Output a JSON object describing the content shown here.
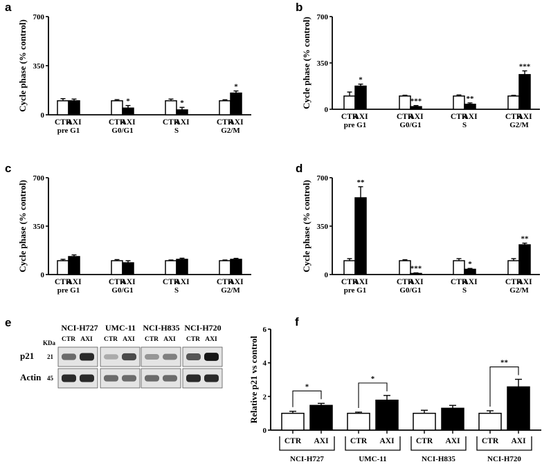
{
  "chart_data": [
    {
      "panel": "a",
      "type": "bar",
      "ylabel": "Cycle phase (% control)",
      "ylim": [
        0,
        700
      ],
      "yticks": [
        0,
        350,
        700
      ],
      "groups": [
        {
          "phase": "pre G1",
          "bars": [
            {
              "label": "CTR",
              "value": 100,
              "err": 15,
              "sig": ""
            },
            {
              "label": "AXI",
              "value": 100,
              "err": 12,
              "sig": ""
            }
          ]
        },
        {
          "phase": "G0/G1",
          "bars": [
            {
              "label": "CTR",
              "value": 100,
              "err": 8,
              "sig": ""
            },
            {
              "label": "AXI",
              "value": 48,
              "err": 18,
              "sig": "*"
            }
          ]
        },
        {
          "phase": "S",
          "bars": [
            {
              "label": "CTR",
              "value": 100,
              "err": 12,
              "sig": ""
            },
            {
              "label": "AXI",
              "value": 35,
              "err": 18,
              "sig": "*"
            }
          ]
        },
        {
          "phase": "G2/M",
          "bars": [
            {
              "label": "CTR",
              "value": 100,
              "err": 7,
              "sig": ""
            },
            {
              "label": "AXI",
              "value": 155,
              "err": 15,
              "sig": "*"
            }
          ]
        }
      ]
    },
    {
      "panel": "b",
      "type": "bar",
      "ylabel": "Cycle phase (% control)",
      "ylim": [
        0,
        700
      ],
      "yticks": [
        0,
        350,
        700
      ],
      "groups": [
        {
          "phase": "pre G1",
          "bars": [
            {
              "label": "CTR",
              "value": 100,
              "err": 30,
              "sig": ""
            },
            {
              "label": "AXI",
              "value": 175,
              "err": 15,
              "sig": "*"
            }
          ]
        },
        {
          "phase": "G0/G1",
          "bars": [
            {
              "label": "CTR",
              "value": 100,
              "err": 6,
              "sig": ""
            },
            {
              "label": "AXI",
              "value": 20,
              "err": 8,
              "sig": "***"
            }
          ]
        },
        {
          "phase": "S",
          "bars": [
            {
              "label": "CTR",
              "value": 100,
              "err": 8,
              "sig": ""
            },
            {
              "label": "AXI",
              "value": 38,
              "err": 10,
              "sig": "**"
            }
          ]
        },
        {
          "phase": "G2/M",
          "bars": [
            {
              "label": "CTR",
              "value": 100,
              "err": 5,
              "sig": ""
            },
            {
              "label": "AXI",
              "value": 262,
              "err": 28,
              "sig": "***"
            }
          ]
        }
      ]
    },
    {
      "panel": "c",
      "type": "bar",
      "ylabel": "Cycle phase (% control)",
      "ylim": [
        0,
        700
      ],
      "yticks": [
        0,
        350,
        700
      ],
      "groups": [
        {
          "phase": "pre G1",
          "bars": [
            {
              "label": "CTR",
              "value": 100,
              "err": 10,
              "sig": ""
            },
            {
              "label": "AXI",
              "value": 130,
              "err": 12,
              "sig": ""
            }
          ]
        },
        {
          "phase": "G0/G1",
          "bars": [
            {
              "label": "CTR",
              "value": 100,
              "err": 8,
              "sig": ""
            },
            {
              "label": "AXI",
              "value": 85,
              "err": 15,
              "sig": ""
            }
          ]
        },
        {
          "phase": "S",
          "bars": [
            {
              "label": "CTR",
              "value": 100,
              "err": 5,
              "sig": ""
            },
            {
              "label": "AXI",
              "value": 110,
              "err": 8,
              "sig": ""
            }
          ]
        },
        {
          "phase": "G2/M",
          "bars": [
            {
              "label": "CTR",
              "value": 100,
              "err": 5,
              "sig": ""
            },
            {
              "label": "AXI",
              "value": 110,
              "err": 7,
              "sig": ""
            }
          ]
        }
      ]
    },
    {
      "panel": "d",
      "type": "bar",
      "ylabel": "Cycle phase (% control)",
      "ylim": [
        0,
        700
      ],
      "yticks": [
        0,
        350,
        700
      ],
      "groups": [
        {
          "phase": "pre G1",
          "bars": [
            {
              "label": "CTR",
              "value": 100,
              "err": 15,
              "sig": ""
            },
            {
              "label": "AXI",
              "value": 555,
              "err": 80,
              "sig": "**"
            }
          ]
        },
        {
          "phase": "G0/G1",
          "bars": [
            {
              "label": "CTR",
              "value": 100,
              "err": 7,
              "sig": ""
            },
            {
              "label": "AXI",
              "value": 8,
              "err": 4,
              "sig": "***"
            }
          ]
        },
        {
          "phase": "S",
          "bars": [
            {
              "label": "CTR",
              "value": 100,
              "err": 15,
              "sig": ""
            },
            {
              "label": "AXI",
              "value": 38,
              "err": 6,
              "sig": "*"
            }
          ]
        },
        {
          "phase": "G2/M",
          "bars": [
            {
              "label": "CTR",
              "value": 100,
              "err": 15,
              "sig": ""
            },
            {
              "label": "AXI",
              "value": 215,
              "err": 12,
              "sig": "**"
            }
          ]
        }
      ]
    },
    {
      "panel": "f",
      "type": "bar",
      "ylabel": "Relative p21 vs control",
      "ylim": [
        0,
        6
      ],
      "yticks": [
        0,
        2,
        4,
        6
      ],
      "groups": [
        {
          "cell_line": "NCI-H727",
          "bars": [
            {
              "label": "CTR",
              "value": 1.0,
              "err": 0.12
            },
            {
              "label": "AXI",
              "value": 1.47,
              "err": 0.12
            }
          ],
          "sig": "*"
        },
        {
          "cell_line": "UMC-11",
          "bars": [
            {
              "label": "CTR",
              "value": 1.0,
              "err": 0.07
            },
            {
              "label": "AXI",
              "value": 1.78,
              "err": 0.28
            }
          ],
          "sig": "*"
        },
        {
          "cell_line": "NCI-H835",
          "bars": [
            {
              "label": "CTR",
              "value": 1.0,
              "err": 0.18
            },
            {
              "label": "AXI",
              "value": 1.3,
              "err": 0.17
            }
          ],
          "sig": ""
        },
        {
          "cell_line": "NCI-H720",
          "bars": [
            {
              "label": "CTR",
              "value": 1.0,
              "err": 0.15
            },
            {
              "label": "AXI",
              "value": 2.57,
              "err": 0.45
            }
          ],
          "sig": "**"
        }
      ]
    }
  ],
  "blot": {
    "panel": "e",
    "kda_label": "KDa",
    "cell_lines": [
      "NCI-H727",
      "UMC-11",
      "NCI-H835",
      "NCI-H720"
    ],
    "lane_labels": [
      "CTR",
      "AXI"
    ],
    "rows": [
      {
        "protein": "p21",
        "kda": "21",
        "ctr_intensity": [
          0.55,
          0.25,
          0.35,
          0.65
        ],
        "axi_intensity": [
          0.85,
          0.7,
          0.45,
          0.95
        ]
      },
      {
        "protein": "Actin",
        "kda": "45",
        "ctr_intensity": [
          0.85,
          0.55,
          0.55,
          0.85
        ],
        "axi_intensity": [
          0.85,
          0.55,
          0.55,
          0.85
        ]
      }
    ]
  }
}
